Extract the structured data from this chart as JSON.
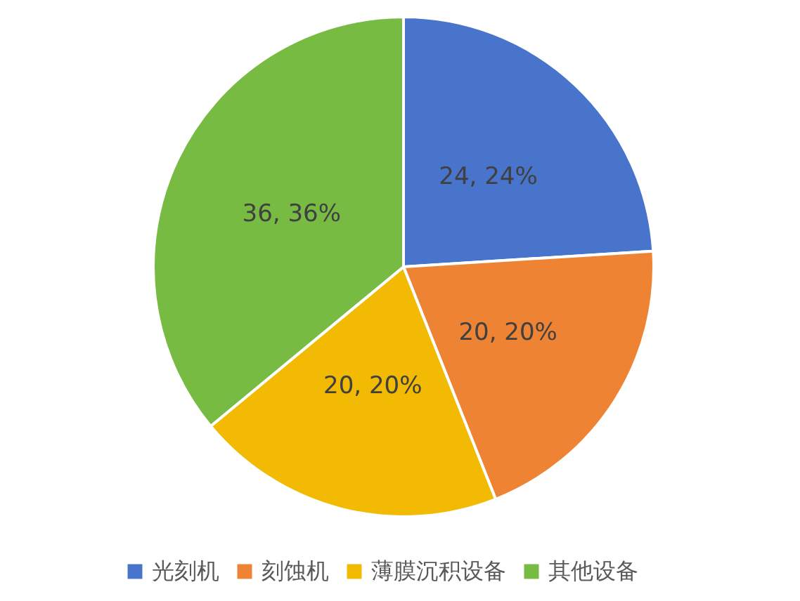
{
  "chart_data": {
    "type": "pie",
    "categories": [
      "光刻机",
      "刻蚀机",
      "薄膜沉积设备",
      "其他设备"
    ],
    "values": [
      24,
      20,
      20,
      36
    ],
    "colors": [
      "#4874cb",
      "#ee8433",
      "#f2ba02",
      "#77bb43"
    ],
    "value_labels": [
      "24, 24%",
      "20, 20%",
      "20, 20%",
      "36, 36%"
    ],
    "legend": "bottom"
  }
}
